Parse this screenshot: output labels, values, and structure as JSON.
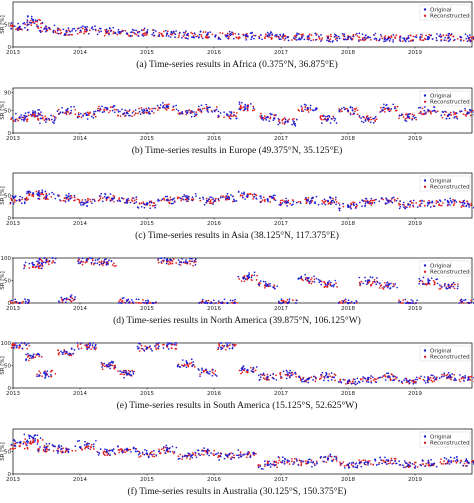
{
  "colors": {
    "original": "#1f1fd6",
    "reconstructed": "#e01f1f"
  },
  "chart_data": [
    {
      "type": "scatter",
      "ylabel": "SR [%]",
      "x_tick_labels": [
        "2013",
        "2014",
        "2015",
        "2016",
        "2017",
        "2018",
        "2019"
      ],
      "y_tick_labels": [
        "0",
        "50"
      ],
      "ylim": [
        0,
        100
      ],
      "legend": {
        "position": "top-right",
        "entries": [
          "Original",
          "Reconstructed"
        ]
      },
      "caption": "(a)  Time-series results in Africa (0.375°N, 36.875°E)",
      "series": [
        {
          "name": "Original",
          "x": [
            2013.1,
            2013.3,
            2013.5,
            2013.8,
            2014.1,
            2014.4,
            2014.7,
            2015.0,
            2015.3,
            2015.6,
            2015.9,
            2016.2,
            2016.5,
            2016.8,
            2017.1,
            2017.4,
            2017.7,
            2018.0,
            2018.3,
            2018.6,
            2018.9,
            2019.2,
            2019.5,
            2019.8
          ],
          "y": [
            45,
            60,
            40,
            35,
            38,
            34,
            30,
            33,
            30,
            27,
            28,
            26,
            24,
            25,
            22,
            23,
            20,
            21,
            22,
            19,
            20,
            22,
            21,
            20
          ]
        },
        {
          "name": "Reconstructed",
          "x": [
            2013.1,
            2013.3,
            2013.5,
            2013.8,
            2014.1,
            2014.4,
            2014.7,
            2015.0,
            2015.3,
            2015.6,
            2015.9,
            2016.2,
            2016.5,
            2016.8,
            2017.1,
            2017.4,
            2017.7,
            2018.0,
            2018.3,
            2018.6,
            2018.9,
            2019.2,
            2019.5,
            2019.8
          ],
          "y": [
            42,
            55,
            38,
            33,
            36,
            32,
            30,
            31,
            29,
            27,
            27,
            25,
            24,
            24,
            22,
            22,
            21,
            21,
            21,
            20,
            20,
            21,
            21,
            20
          ]
        }
      ]
    },
    {
      "type": "scatter",
      "ylabel": "SR [%]",
      "x_tick_labels": [
        "2013",
        "2014",
        "2015",
        "2016",
        "2017",
        "2018",
        "2019"
      ],
      "y_tick_labels": [
        "0",
        "50",
        "90"
      ],
      "ylim": [
        0,
        100
      ],
      "legend": {
        "position": "top-right",
        "entries": [
          "Original",
          "Reconstructed"
        ]
      },
      "caption": "(b)  Time-series results in Europe (49.375°N, 35.125°E)",
      "series": [
        {
          "name": "Original",
          "x": [
            2013.1,
            2013.3,
            2013.5,
            2013.8,
            2014.1,
            2014.4,
            2014.7,
            2015.0,
            2015.3,
            2015.6,
            2015.9,
            2016.2,
            2016.5,
            2016.8,
            2017.1,
            2017.4,
            2017.7,
            2018.0,
            2018.3,
            2018.6,
            2018.9,
            2019.2,
            2019.5,
            2019.8
          ],
          "y": [
            35,
            45,
            30,
            50,
            40,
            55,
            45,
            50,
            60,
            45,
            55,
            40,
            60,
            35,
            25,
            55,
            30,
            50,
            30,
            55,
            35,
            50,
            40,
            45
          ]
        },
        {
          "name": "Reconstructed",
          "x": [
            2013.1,
            2013.3,
            2013.5,
            2013.8,
            2014.1,
            2014.4,
            2014.7,
            2015.0,
            2015.3,
            2015.6,
            2015.9,
            2016.2,
            2016.5,
            2016.8,
            2017.1,
            2017.4,
            2017.7,
            2018.0,
            2018.3,
            2018.6,
            2018.9,
            2019.2,
            2019.5,
            2019.8
          ],
          "y": [
            33,
            42,
            32,
            47,
            40,
            52,
            44,
            50,
            57,
            45,
            52,
            40,
            56,
            36,
            27,
            52,
            32,
            48,
            31,
            52,
            36,
            48,
            40,
            44
          ]
        }
      ]
    },
    {
      "type": "scatter",
      "ylabel": "SR [%]",
      "x_tick_labels": [
        "2013",
        "2014",
        "2015",
        "2016",
        "2017",
        "2018",
        "2019"
      ],
      "y_tick_labels": [
        "0",
        "50"
      ],
      "ylim": [
        0,
        100
      ],
      "legend": {
        "position": "top-right",
        "entries": [
          "Original",
          "Reconstructed"
        ]
      },
      "caption": "(c)  Time-series results in Asia (38.125°N, 117.375°E)",
      "series": [
        {
          "name": "Original",
          "x": [
            2013.1,
            2013.3,
            2013.5,
            2013.8,
            2014.1,
            2014.4,
            2014.7,
            2015.0,
            2015.3,
            2015.6,
            2015.9,
            2016.2,
            2016.5,
            2016.8,
            2017.1,
            2017.4,
            2017.7,
            2018.0,
            2018.3,
            2018.6,
            2018.9,
            2019.2,
            2019.5,
            2019.8
          ],
          "y": [
            40,
            55,
            50,
            45,
            35,
            45,
            40,
            30,
            40,
            45,
            38,
            45,
            50,
            42,
            35,
            40,
            38,
            25,
            35,
            38,
            30,
            32,
            35,
            30
          ]
        },
        {
          "name": "Reconstructed",
          "x": [
            2013.1,
            2013.3,
            2013.5,
            2013.8,
            2014.1,
            2014.4,
            2014.7,
            2015.0,
            2015.3,
            2015.6,
            2015.9,
            2016.2,
            2016.5,
            2016.8,
            2017.1,
            2017.4,
            2017.7,
            2018.0,
            2018.3,
            2018.6,
            2018.9,
            2019.2,
            2019.5,
            2019.8
          ],
          "y": [
            38,
            52,
            48,
            43,
            36,
            43,
            39,
            32,
            39,
            43,
            38,
            43,
            47,
            41,
            35,
            39,
            37,
            28,
            34,
            37,
            31,
            32,
            34,
            31
          ]
        }
      ]
    },
    {
      "type": "scatter",
      "ylabel": "SR [%]",
      "x_tick_labels": [
        "2013",
        "2014",
        "2015",
        "2016",
        "2017",
        "2018",
        "2019"
      ],
      "y_tick_labels": [
        "0",
        "50",
        "100"
      ],
      "ylim": [
        0,
        100
      ],
      "legend": {
        "position": "top-right",
        "entries": [
          "Original",
          "Reconstructed"
        ]
      },
      "caption": "(d)  Time-series results in North America (39.875°N, 106.125°W)",
      "series": [
        {
          "name": "Original",
          "x": [
            2013.1,
            2013.3,
            2013.5,
            2013.8,
            2014.1,
            2014.4,
            2014.7,
            2015.0,
            2015.3,
            2015.6,
            2015.9,
            2016.2,
            2016.5,
            2016.8,
            2017.1,
            2017.4,
            2017.7,
            2018.0,
            2018.3,
            2018.6,
            2018.9,
            2019.2,
            2019.5,
            2019.8
          ],
          "y": [
            0,
            85,
            95,
            10,
            95,
            90,
            5,
            0,
            95,
            90,
            0,
            0,
            60,
            40,
            0,
            55,
            45,
            0,
            50,
            40,
            0,
            50,
            40,
            0
          ]
        },
        {
          "name": "Reconstructed",
          "x": [
            2013.1,
            2013.3,
            2013.5,
            2013.8,
            2014.1,
            2014.4,
            2014.7,
            2015.0,
            2015.3,
            2015.6,
            2015.9,
            2016.2,
            2016.5,
            2016.8,
            2017.1,
            2017.4,
            2017.7,
            2018.0,
            2018.3,
            2018.6,
            2018.9,
            2019.2,
            2019.5,
            2019.8
          ],
          "y": [
            0,
            80,
            92,
            8,
            92,
            88,
            5,
            0,
            92,
            88,
            0,
            0,
            55,
            38,
            0,
            50,
            42,
            0,
            45,
            38,
            0,
            45,
            38,
            0
          ]
        }
      ]
    },
    {
      "type": "scatter",
      "ylabel": "SR [%]",
      "x_tick_labels": [
        "2013",
        "2014",
        "2015",
        "2016",
        "2017",
        "2018",
        "2019"
      ],
      "y_tick_labels": [
        "0",
        "50",
        "100"
      ],
      "ylim": [
        0,
        100
      ],
      "legend": {
        "position": "top-right",
        "entries": [
          "Original",
          "Reconstructed"
        ]
      },
      "caption": "(e)  Time-series results in South America (15.125°S, 52.625°W)",
      "series": [
        {
          "name": "Original",
          "x": [
            2013.1,
            2013.3,
            2013.5,
            2013.8,
            2014.1,
            2014.4,
            2014.7,
            2015.0,
            2015.3,
            2015.6,
            2015.9,
            2016.2,
            2016.5,
            2016.8,
            2017.1,
            2017.4,
            2017.7,
            2018.0,
            2018.3,
            2018.6,
            2018.9,
            2019.2,
            2019.5,
            2019.8
          ],
          "y": [
            95,
            70,
            30,
            80,
            95,
            50,
            30,
            90,
            95,
            55,
            35,
            95,
            40,
            25,
            30,
            20,
            25,
            15,
            20,
            25,
            15,
            20,
            25,
            20
          ]
        },
        {
          "name": "Reconstructed",
          "x": [
            2013.1,
            2013.3,
            2013.5,
            2013.8,
            2014.1,
            2014.4,
            2014.7,
            2015.0,
            2015.3,
            2015.6,
            2015.9,
            2016.2,
            2016.5,
            2016.8,
            2017.1,
            2017.4,
            2017.7,
            2018.0,
            2018.3,
            2018.6,
            2018.9,
            2019.2,
            2019.5,
            2019.8
          ],
          "y": [
            92,
            68,
            32,
            78,
            92,
            48,
            32,
            88,
            92,
            52,
            35,
            92,
            38,
            24,
            28,
            19,
            24,
            14,
            19,
            24,
            15,
            19,
            24,
            19
          ]
        }
      ]
    },
    {
      "type": "scatter",
      "ylabel": "SR [%]",
      "x_tick_labels": [
        "2013",
        "2014",
        "2015",
        "2016",
        "2017",
        "2018",
        "2019"
      ],
      "y_tick_labels": [
        "0",
        "50"
      ],
      "ylim": [
        0,
        100
      ],
      "legend": {
        "position": "top-right",
        "entries": [
          "Original",
          "Reconstructed"
        ]
      },
      "caption": "(f)  Time-series results in Australia (30.125°S, 150.375°E)",
      "series": [
        {
          "name": "Original",
          "x": [
            2013.1,
            2013.3,
            2013.5,
            2013.8,
            2014.1,
            2014.4,
            2014.7,
            2015.0,
            2015.3,
            2015.6,
            2015.9,
            2016.2,
            2016.5,
            2016.8,
            2017.1,
            2017.4,
            2017.7,
            2018.0,
            2018.3,
            2018.6,
            2018.9,
            2019.2,
            2019.5,
            2019.8
          ],
          "y": [
            70,
            80,
            60,
            55,
            65,
            50,
            55,
            45,
            55,
            40,
            50,
            40,
            45,
            20,
            30,
            25,
            35,
            20,
            25,
            30,
            20,
            25,
            30,
            25
          ]
        },
        {
          "name": "Reconstructed",
          "x": [
            2013.1,
            2013.3,
            2013.5,
            2013.8,
            2014.1,
            2014.4,
            2014.7,
            2015.0,
            2015.3,
            2015.6,
            2015.9,
            2016.2,
            2016.5,
            2016.8,
            2017.1,
            2017.4,
            2017.7,
            2018.0,
            2018.3,
            2018.6,
            2018.9,
            2019.2,
            2019.5,
            2019.8
          ],
          "y": [
            62,
            72,
            56,
            52,
            60,
            48,
            52,
            44,
            52,
            40,
            47,
            40,
            43,
            22,
            29,
            25,
            33,
            21,
            25,
            29,
            21,
            25,
            29,
            24
          ]
        }
      ]
    }
  ]
}
